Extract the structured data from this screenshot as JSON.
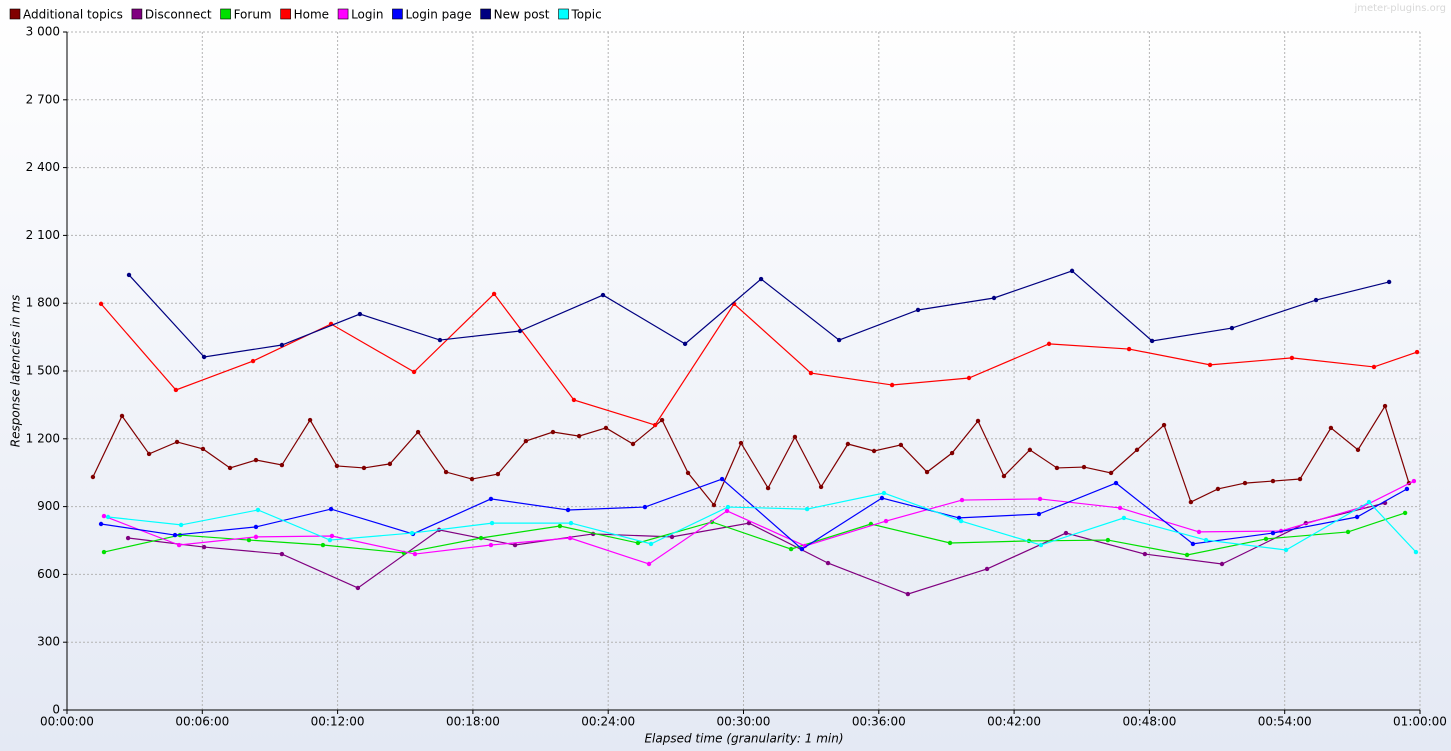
{
  "chart_data": {
    "type": "line",
    "watermark": "jmeter-plugins.org",
    "x_label": "Elapsed time (granularity: 1 min)",
    "y_label": "Response latencies in ms",
    "xlim": [
      0,
      60
    ],
    "xticks": [
      {
        "value": 0,
        "label": "00:00:00"
      },
      {
        "value": 6,
        "label": "00:06:00"
      },
      {
        "value": 12,
        "label": "00:12:00"
      },
      {
        "value": 18,
        "label": "00:18:00"
      },
      {
        "value": 24,
        "label": "00:24:00"
      },
      {
        "value": 30,
        "label": "00:30:00"
      },
      {
        "value": 36,
        "label": "00:36:00"
      },
      {
        "value": 42,
        "label": "00:42:00"
      },
      {
        "value": 48,
        "label": "00:48:00"
      },
      {
        "value": 54,
        "label": "00:54:00"
      },
      {
        "value": 60,
        "label": "01:00:00"
      }
    ],
    "ylim": [
      0,
      3000
    ],
    "yticks": [
      0,
      300,
      600,
      900,
      {
        "value": 1200,
        "label": "1 200"
      },
      {
        "value": 1500,
        "label": "1 500"
      },
      {
        "value": 1800,
        "label": "1 800"
      },
      {
        "value": 2100,
        "label": "2 100"
      },
      {
        "value": 2400,
        "label": "2 400"
      },
      {
        "value": 2700,
        "label": "2 700"
      },
      {
        "value": 3000,
        "label": "3 000"
      }
    ],
    "grid": true,
    "legend": "top-left",
    "series": [
      {
        "name": "Additional topics",
        "color": "#800000",
        "x": [
          1.15,
          2.44,
          3.64,
          4.88,
          6.03,
          7.23,
          8.38,
          9.53,
          10.78,
          11.97,
          13.17,
          14.32,
          15.57,
          16.81,
          17.96,
          19.11,
          20.35,
          21.55,
          22.71,
          23.9,
          25.1,
          26.39,
          27.54,
          28.69,
          29.89,
          31.09,
          32.28,
          33.44,
          34.63,
          35.79,
          36.98,
          38.14,
          39.25,
          40.4,
          41.55,
          42.7,
          43.9,
          45.1,
          46.3,
          47.45,
          48.65,
          49.84,
          51.04,
          52.24,
          53.48,
          54.68,
          56.05,
          57.25,
          58.45,
          59.51
        ],
        "values": [
          1031,
          1301,
          1133,
          1186,
          1155,
          1071,
          1106,
          1084,
          1283,
          1080,
          1071,
          1089,
          1230,
          1053,
          1022,
          1044,
          1190,
          1230,
          1212,
          1248,
          1177,
          1283,
          1049,
          907,
          1181,
          982,
          1208,
          987,
          1177,
          1146,
          1173,
          1053,
          1137,
          1279,
          1035,
          1151,
          1071,
          1075,
          1049,
          1151,
          1261,
          920,
          978,
          1004,
          1013,
          1022,
          1248,
          1151,
          1345,
          1004
        ]
      },
      {
        "name": "Disconnect",
        "color": "#800080",
        "x": [
          2.71,
          6.08,
          9.53,
          12.9,
          16.5,
          19.87,
          23.33,
          26.83,
          30.24,
          33.75,
          37.29,
          40.8,
          44.3,
          47.8,
          51.22,
          54.94,
          58.45
        ],
        "values": [
          761,
          721,
          690,
          540,
          797,
          730,
          779,
          766,
          827,
          650,
          513,
          624,
          783,
          690,
          646,
          827,
          916
        ]
      },
      {
        "name": "Forum",
        "color": "#00e000",
        "x": [
          1.64,
          5.01,
          8.07,
          11.35,
          14.94,
          18.36,
          21.86,
          25.32,
          28.6,
          32.11,
          35.65,
          39.16,
          42.66,
          46.16,
          49.67,
          53.17,
          56.81,
          59.34
        ],
        "values": [
          699,
          774,
          752,
          730,
          695,
          761,
          814,
          739,
          832,
          712,
          823,
          739,
          748,
          752,
          686,
          757,
          788,
          872
        ]
      },
      {
        "name": "Home",
        "color": "#ff0000",
        "x": [
          1.51,
          4.83,
          8.25,
          11.71,
          15.39,
          18.94,
          22.48,
          26.08,
          29.58,
          32.99,
          36.59,
          40.0,
          43.55,
          47.1,
          50.69,
          54.32,
          57.96,
          59.87
        ],
        "values": [
          1797,
          1416,
          1544,
          1708,
          1496,
          1841,
          1372,
          1261,
          1797,
          1491,
          1438,
          1469,
          1620,
          1597,
          1527,
          1558,
          1518,
          1584
        ]
      },
      {
        "name": "Login",
        "color": "#ff00ff",
        "x": [
          1.64,
          4.97,
          8.38,
          11.75,
          15.43,
          18.8,
          22.31,
          25.81,
          29.27,
          32.73,
          36.32,
          39.69,
          43.15,
          46.7,
          50.2,
          53.84,
          57.43,
          59.73
        ],
        "values": [
          858,
          730,
          766,
          770,
          690,
          730,
          761,
          646,
          881,
          726,
          836,
          929,
          934,
          894,
          788,
          792,
          898,
          1013
        ]
      },
      {
        "name": "Login page",
        "color": "#0000ff",
        "x": [
          1.51,
          4.79,
          8.38,
          11.71,
          15.34,
          18.8,
          22.22,
          25.63,
          29.05,
          32.59,
          36.14,
          39.56,
          43.1,
          46.52,
          49.93,
          53.48,
          57.21,
          59.42
        ],
        "values": [
          823,
          774,
          810,
          889,
          779,
          934,
          885,
          898,
          1022,
          712,
          938,
          850,
          867,
          1004,
          735,
          783,
          854,
          978
        ]
      },
      {
        "name": "New post",
        "color": "#000080",
        "x": [
          2.75,
          6.08,
          9.53,
          12.99,
          16.54,
          20.09,
          23.77,
          27.41,
          30.78,
          34.24,
          37.74,
          41.11,
          44.57,
          48.12,
          51.66,
          55.39,
          58.63
        ],
        "values": [
          1925,
          1562,
          1615,
          1752,
          1637,
          1677,
          1836,
          1620,
          1907,
          1637,
          1770,
          1823,
          1943,
          1633,
          1690,
          1814,
          1894
        ]
      },
      {
        "name": "Topic",
        "color": "#00ffff",
        "x": [
          1.82,
          5.06,
          8.47,
          11.66,
          15.3,
          18.85,
          22.35,
          25.9,
          29.31,
          32.82,
          36.23,
          39.65,
          43.19,
          46.87,
          50.51,
          54.06,
          57.74,
          59.82
        ],
        "values": [
          854,
          819,
          885,
          752,
          783,
          827,
          827,
          735,
          898,
          889,
          960,
          836,
          730,
          850,
          752,
          708,
          920,
          699
        ]
      }
    ]
  }
}
